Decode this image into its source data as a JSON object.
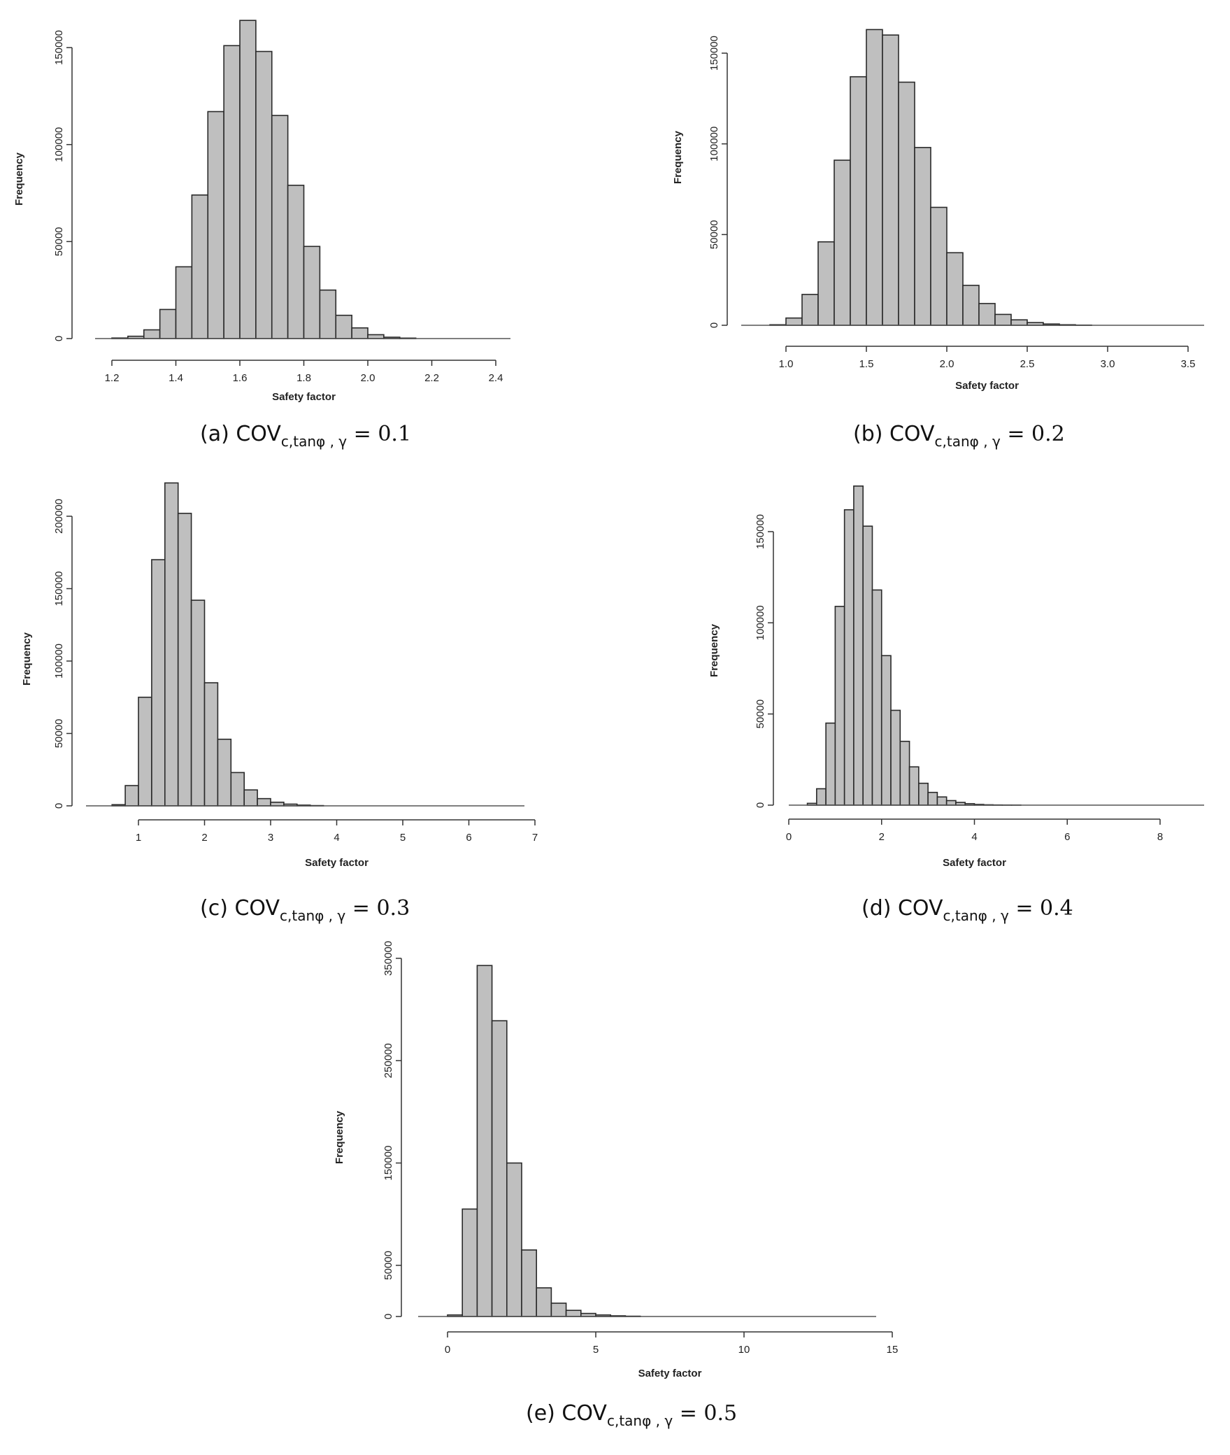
{
  "chart_data": [
    {
      "id": "a",
      "type": "bar",
      "xlabel": "Safety factor",
      "ylabel": "Frequency",
      "caption": {
        "prefix": "(a) COV",
        "sub": "c,tanφ , γ",
        "suffix": " = 0.1"
      },
      "x_ticks": [
        "1.2",
        "1.4",
        "1.6",
        "1.8",
        "2.0",
        "2.2",
        "2.4"
      ],
      "x_tick_values": [
        1.2,
        1.4,
        1.6,
        1.8,
        2.0,
        2.2,
        2.4
      ],
      "y_ticks": [
        "0",
        "50000",
        "100000",
        "150000"
      ],
      "y_tick_values": [
        0,
        50000,
        100000,
        150000
      ],
      "xlim": [
        1.2,
        2.4
      ],
      "ylim": [
        0,
        165000
      ],
      "bin_start": 1.2,
      "bin_width": 0.05,
      "values": [
        300,
        1200,
        4500,
        15000,
        37000,
        74000,
        117000,
        151000,
        164000,
        148000,
        115000,
        79000,
        47500,
        25000,
        12000,
        5500,
        2000,
        700,
        250
      ]
    },
    {
      "id": "b",
      "type": "bar",
      "xlabel": "Safety factor",
      "ylabel": "Frequency",
      "caption": {
        "prefix": "(b) COV",
        "sub": "c,tanφ , γ",
        "suffix": " = 0.2"
      },
      "x_ticks": [
        "1.0",
        "1.5",
        "2.0",
        "2.5",
        "3.0",
        "3.5"
      ],
      "x_tick_values": [
        1.0,
        1.5,
        2.0,
        2.5,
        3.0,
        3.5
      ],
      "y_ticks": [
        "0",
        "50000",
        "100000",
        "150000"
      ],
      "y_tick_values": [
        0,
        50000,
        100000,
        150000
      ],
      "xlim": [
        1.0,
        3.5
      ],
      "ylim": [
        0,
        164000
      ],
      "bin_start": 0.9,
      "bin_width": 0.1,
      "values": [
        300,
        4000,
        17000,
        46000,
        91000,
        137000,
        163000,
        160000,
        134000,
        98000,
        65000,
        40000,
        22000,
        12000,
        6000,
        3000,
        1500,
        700,
        300,
        100
      ]
    },
    {
      "id": "c",
      "type": "bar",
      "xlabel": "Safety factor",
      "ylabel": "Frequency",
      "caption": {
        "prefix": "(c) COV",
        "sub": "c,tanφ , γ",
        "suffix": " = 0.3"
      },
      "x_ticks": [
        "1",
        "2",
        "3",
        "4",
        "5",
        "6",
        "7"
      ],
      "x_tick_values": [
        1,
        2,
        3,
        4,
        5,
        6,
        7
      ],
      "y_ticks": [
        "0",
        "50000",
        "100000",
        "150000",
        "200000"
      ],
      "y_tick_values": [
        0,
        50000,
        100000,
        150000,
        200000
      ],
      "xlim": [
        1,
        7
      ],
      "ylim": [
        0,
        223000
      ],
      "bin_start": 0.6,
      "bin_width": 0.2,
      "values": [
        800,
        14000,
        75000,
        170000,
        223000,
        202000,
        142000,
        85000,
        46000,
        23000,
        11000,
        5000,
        2500,
        1200,
        500,
        200
      ]
    },
    {
      "id": "d",
      "type": "bar",
      "xlabel": "Safety factor",
      "ylabel": "Frequency",
      "caption": {
        "prefix": "(d) COV",
        "sub": "c,tanφ , γ",
        "suffix": " = 0.4"
      },
      "x_ticks": [
        "0",
        "2",
        "4",
        "6",
        "8"
      ],
      "x_tick_values": [
        0,
        2,
        4,
        6,
        8
      ],
      "y_ticks": [
        "0",
        "50000",
        "100000",
        "150000"
      ],
      "y_tick_values": [
        0,
        50000,
        100000,
        150000
      ],
      "xlim": [
        0,
        8
      ],
      "ylim": [
        0,
        175000
      ],
      "bin_start": 0.4,
      "bin_width": 0.2,
      "values": [
        1000,
        9000,
        45000,
        109000,
        162000,
        175000,
        153000,
        118000,
        82000,
        52000,
        35000,
        21000,
        12000,
        7000,
        4500,
        2500,
        1500,
        800,
        400,
        200,
        100,
        50,
        30
      ]
    },
    {
      "id": "e",
      "type": "bar",
      "xlabel": "Safety factor",
      "ylabel": "Frequency",
      "caption": {
        "prefix": "(e) COV",
        "sub": "c,tanφ , γ",
        "suffix": " = 0.5"
      },
      "x_ticks": [
        "0",
        "5",
        "10",
        "15"
      ],
      "x_tick_values": [
        0,
        5,
        10,
        15
      ],
      "y_ticks": [
        "0",
        "50000",
        "150000",
        "250000",
        "350000"
      ],
      "y_tick_values": [
        0,
        50000,
        150000,
        250000,
        350000
      ],
      "xlim": [
        0,
        15
      ],
      "ylim": [
        0,
        350000
      ],
      "bin_start": 0,
      "bin_width": 0.5,
      "values": [
        1500,
        105000,
        343000,
        289000,
        150000,
        65000,
        28000,
        13000,
        6000,
        3000,
        1500,
        700,
        300
      ]
    }
  ]
}
